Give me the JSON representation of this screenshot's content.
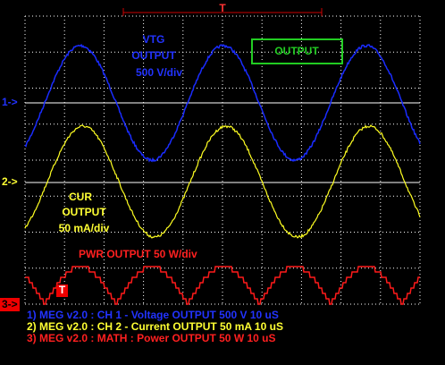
{
  "top_marker": "T",
  "channels": [
    {
      "marker": "1->",
      "label_lines": [
        "VTG",
        "OUTPUT",
        "500 V/div"
      ],
      "legend": "1) MEG v2.0 : CH 1 - Voltage OUTPUT 500  V 10 uS"
    },
    {
      "marker": "2->",
      "label_lines": [
        "CUR",
        "OUTPUT",
        "50 mA/div"
      ],
      "legend": "2) MEG v2.0 : CH 2 - Current OUTPUT 50 mA 10 uS"
    },
    {
      "marker": "3->",
      "label_lines": [
        "PWR OUTPUT 50 W/div"
      ],
      "legend": "3) MEG v2.0 : MATH : Power OUTPUT 50  W 10 uS"
    }
  ],
  "trigger_marker": "T",
  "badge": "OUTPUT"
}
